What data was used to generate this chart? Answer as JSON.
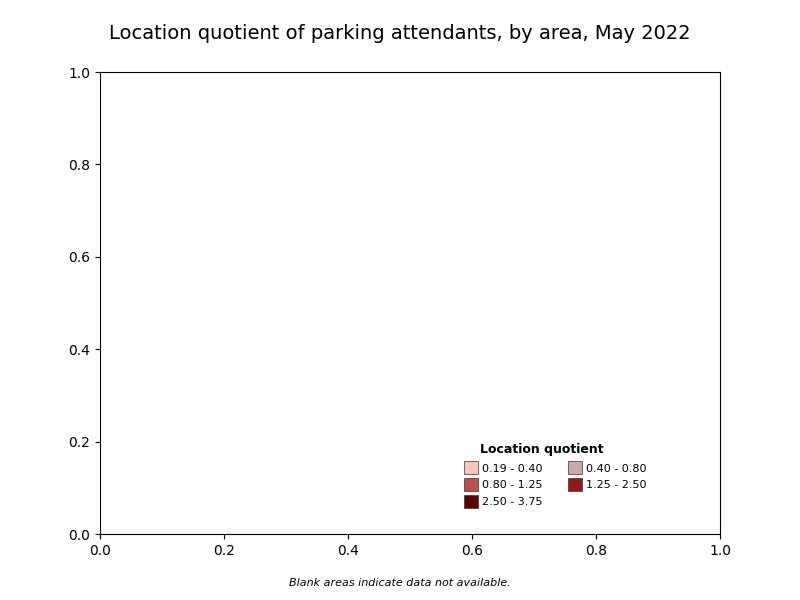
{
  "title": "Location quotient of parking attendants, by area, May 2022",
  "title_fontsize": 14,
  "legend_title": "Location quotient",
  "legend_labels": [
    "0.19 - 0.40",
    "0.40 - 0.80",
    "0.80 - 1.25",
    "1.25 - 2.50",
    "2.50 - 3.75"
  ],
  "legend_colors": [
    "#fcc5c0",
    "#c994c7",
    "#dd1c77",
    "#980043",
    "#67000d"
  ],
  "color_no_data": "#ffffff",
  "color_border": "#000000",
  "footnote": "Blank areas indicate data not available.",
  "figsize": [
    8.0,
    6.0
  ],
  "dpi": 100,
  "colors": {
    "range1": "#fcc5c0",
    "range2": "#d9a0a0",
    "range3": "#c0504d",
    "range4": "#9b2335",
    "range5": "#7f0000"
  }
}
